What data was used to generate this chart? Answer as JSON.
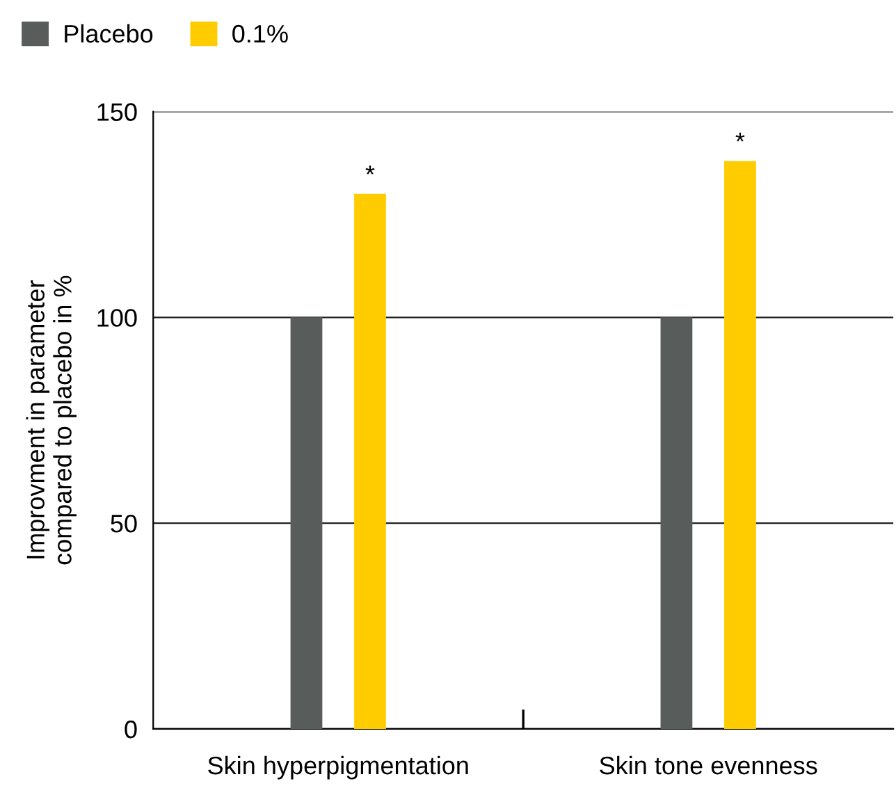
{
  "chart_data": {
    "type": "bar",
    "ylabel": "Improvment in parameter\ncompared to placebo in %",
    "categories": [
      "Skin hyperpigmentation",
      "Skin tone evenness"
    ],
    "series": [
      {
        "name": "Placebo",
        "color": "#585c5b",
        "values": [
          100,
          100
        ]
      },
      {
        "name": "0.1%",
        "color": "#ffcc00",
        "values": [
          130,
          138
        ]
      }
    ],
    "ylim": [
      0,
      150
    ],
    "yticks": [
      0,
      50,
      100,
      150
    ],
    "grid": "y",
    "legend": "top left",
    "annotations": [
      "*",
      "*"
    ]
  }
}
